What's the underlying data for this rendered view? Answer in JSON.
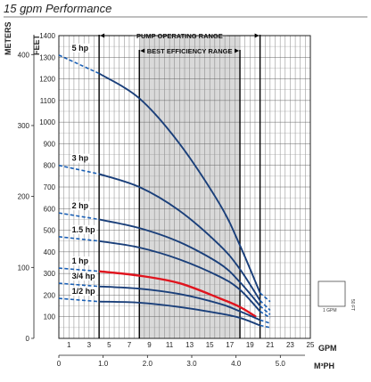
{
  "chart_data": {
    "type": "line",
    "title": "15 gpm Performance",
    "xlabel": "GPM",
    "ylabel": "FEET",
    "y2label": "METERS",
    "x2label": "M³PH",
    "xlim": [
      0,
      25
    ],
    "ylim": [
      0,
      1400
    ],
    "x_ticks": [
      "1",
      "3",
      "5",
      "7",
      "9",
      "11",
      "13",
      "15",
      "17",
      "19",
      "21",
      "23",
      "25"
    ],
    "y_ticks": [
      "100",
      "200",
      "300",
      "400",
      "500",
      "600",
      "700",
      "800",
      "900",
      "1000",
      "1100",
      "1200",
      "1300",
      "1400"
    ],
    "meter_ticks": [
      "0",
      "100",
      "200",
      "300",
      "400"
    ],
    "m3ph_ticks": [
      "0",
      "1.0",
      "2.0",
      "3.0",
      "4.0",
      "5.0"
    ],
    "pump_operating_range": {
      "label": "PUMP OPERATING RANGE",
      "x": [
        4,
        20
      ]
    },
    "best_efficiency_range": {
      "label": "BEST EFFICIENCY RANGE",
      "x": [
        8,
        18
      ]
    },
    "series": [
      {
        "name": "5 hp",
        "color": "#1a3f7a",
        "solid": [
          [
            4,
            1225
          ],
          [
            8,
            1110
          ],
          [
            12,
            900
          ],
          [
            16,
            620
          ],
          [
            18,
            430
          ],
          [
            20,
            210
          ]
        ],
        "dash_start": [
          [
            0,
            1310
          ],
          [
            4,
            1225
          ]
        ],
        "dash_end": [
          [
            20,
            210
          ],
          [
            21,
            170
          ]
        ]
      },
      {
        "name": "3 hp",
        "color": "#1a3f7a",
        "solid": [
          [
            4,
            760
          ],
          [
            8,
            700
          ],
          [
            12,
            590
          ],
          [
            16,
            430
          ],
          [
            18,
            320
          ],
          [
            20,
            175
          ]
        ],
        "dash_start": [
          [
            0,
            800
          ],
          [
            4,
            760
          ]
        ],
        "dash_end": [
          [
            20,
            175
          ],
          [
            21,
            130
          ]
        ]
      },
      {
        "name": "2 hp",
        "color": "#1a3f7a",
        "solid": [
          [
            4,
            550
          ],
          [
            8,
            510
          ],
          [
            12,
            445
          ],
          [
            16,
            345
          ],
          [
            18,
            260
          ],
          [
            20,
            150
          ]
        ],
        "dash_start": [
          [
            0,
            580
          ],
          [
            4,
            550
          ]
        ],
        "dash_end": [
          [
            20,
            150
          ],
          [
            21,
            110
          ]
        ]
      },
      {
        "name": "1.5 hp",
        "color": "#1a3f7a",
        "solid": [
          [
            4,
            450
          ],
          [
            8,
            420
          ],
          [
            12,
            365
          ],
          [
            16,
            285
          ],
          [
            18,
            225
          ],
          [
            20,
            125
          ]
        ],
        "dash_start": [
          [
            0,
            470
          ],
          [
            4,
            450
          ]
        ],
        "dash_end": [
          [
            20,
            125
          ],
          [
            21,
            95
          ]
        ]
      },
      {
        "name": "1 hp",
        "color": "#e0141e",
        "solid": [
          [
            4,
            310
          ],
          [
            8,
            290
          ],
          [
            12,
            255
          ],
          [
            16,
            185
          ],
          [
            18,
            145
          ],
          [
            19.6,
            100
          ]
        ],
        "dash_start": [
          [
            0,
            325
          ],
          [
            4,
            310
          ]
        ],
        "dash_end": []
      },
      {
        "name": "3/4 hp",
        "color": "#1a3f7a",
        "solid": [
          [
            4,
            240
          ],
          [
            8,
            230
          ],
          [
            12,
            205
          ],
          [
            16,
            160
          ],
          [
            18,
            125
          ],
          [
            20,
            85
          ]
        ],
        "dash_start": [
          [
            0,
            255
          ],
          [
            4,
            240
          ]
        ],
        "dash_end": [
          [
            20,
            85
          ],
          [
            21,
            70
          ]
        ]
      },
      {
        "name": "1/2 hp",
        "color": "#1a3f7a",
        "solid": [
          [
            4,
            170
          ],
          [
            8,
            165
          ],
          [
            12,
            145
          ],
          [
            16,
            115
          ],
          [
            18,
            95
          ],
          [
            20,
            60
          ]
        ],
        "dash_start": [
          [
            0,
            185
          ],
          [
            4,
            170
          ]
        ],
        "dash_end": [
          [
            20,
            60
          ],
          [
            21,
            50
          ]
        ]
      }
    ],
    "legend_box": {
      "x_label": "1 GPM",
      "y_label": "50 FT"
    },
    "grid": true
  }
}
